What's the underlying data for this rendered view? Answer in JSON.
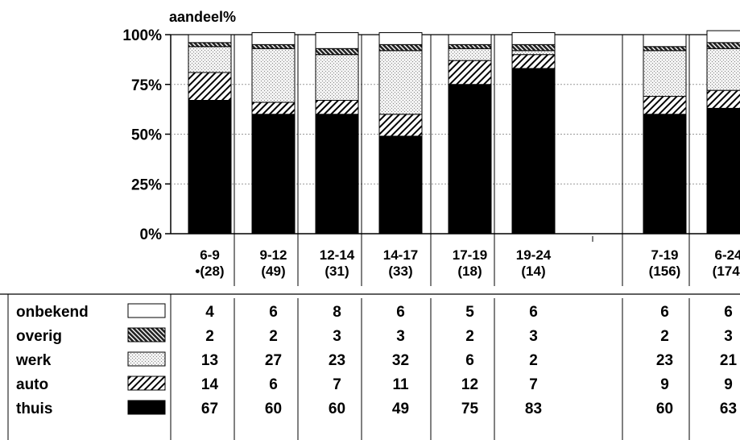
{
  "chart_data": {
    "type": "bar",
    "stacked": true,
    "ylabel": "aandeel%",
    "ylim": [
      0,
      100
    ],
    "yticks": [
      "0%",
      "25%",
      "50%",
      "75%",
      "100%"
    ],
    "categories": [
      {
        "range": "6-9",
        "n": "•(28)"
      },
      {
        "range": "9-12",
        "n": "(49)"
      },
      {
        "range": "12-14",
        "n": "(31)"
      },
      {
        "range": "14-17",
        "n": "(33)"
      },
      {
        "range": "17-19",
        "n": "(18)"
      },
      {
        "range": "19-24",
        "n": "(14)"
      },
      {
        "range": "",
        "n": ""
      },
      {
        "range": "7-19",
        "n": "(156)"
      },
      {
        "range": "6-24",
        "n": "(174)"
      }
    ],
    "series": [
      {
        "name": "onbekend",
        "pattern": "white",
        "values": [
          4,
          6,
          8,
          6,
          5,
          6,
          null,
          6,
          6
        ]
      },
      {
        "name": "overig",
        "pattern": "dense-diagonal",
        "values": [
          2,
          2,
          3,
          3,
          2,
          3,
          null,
          2,
          3
        ]
      },
      {
        "name": "werk",
        "pattern": "dots",
        "values": [
          13,
          27,
          23,
          32,
          6,
          2,
          null,
          23,
          21
        ]
      },
      {
        "name": "auto",
        "pattern": "diagonal",
        "values": [
          14,
          6,
          7,
          11,
          12,
          7,
          null,
          9,
          9
        ]
      },
      {
        "name": "thuis",
        "pattern": "black",
        "values": [
          67,
          60,
          60,
          49,
          75,
          83,
          null,
          60,
          63
        ]
      }
    ],
    "grid": true,
    "legend": "table-below"
  }
}
